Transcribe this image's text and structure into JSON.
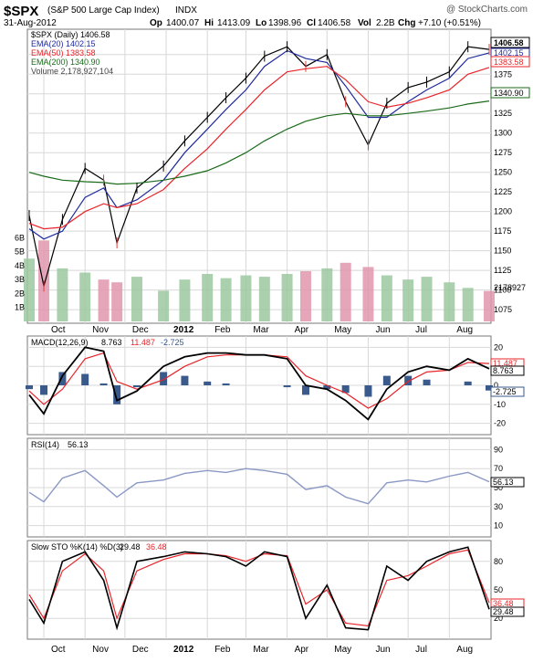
{
  "header": {
    "symbol": "$SPX",
    "name": "(S&P 500 Large Cap Index)",
    "exchange": "INDX",
    "watermark": "@ StockCharts.com",
    "date": "31-Aug-2012",
    "quote": {
      "open_label": "Op",
      "open": "1400.07",
      "high_label": "Hi",
      "high": "1413.09",
      "low_label": "Lo",
      "low": "1398.96",
      "close_label": "Cl",
      "close": "1406.58",
      "volume_label": "Vol",
      "volume": "2.2B",
      "change_label": "Chg",
      "change": "+7.10 (+0.51%)"
    }
  },
  "colors": {
    "background": "#ffffff",
    "panel_border": "#777777",
    "grid": "#d8d8d8",
    "price_bars": "#000000",
    "price_bars_down": "#e03a3a",
    "ema20": "#1f2a9e",
    "ema50": "#e8252a",
    "ema200": "#1a6b1a",
    "volume_up": "#9cc8a0",
    "volume_down": "#e296ad",
    "macd": "#000000",
    "signal": "#e8252a",
    "histogram": "#3a5a8c",
    "rsi_line": "#8a98c4",
    "sto_k": "#000000",
    "sto_d": "#e8252a"
  },
  "price_panel": {
    "title_prefix": "$SPX (Daily) 1406.58",
    "legend": [
      {
        "label": "EMA(20) 1402.15",
        "color_key": "ema20"
      },
      {
        "label": "EMA(50) 1383.58",
        "color_key": "ema50"
      },
      {
        "label": "EMA(200) 1340.90",
        "color_key": "ema200"
      },
      {
        "label": "Volume 2,178,927,104",
        "color_key": "volume_up"
      }
    ],
    "price_ticks": [
      "1400",
      "1375",
      "1350",
      "1325",
      "1300",
      "1275",
      "1250",
      "1225",
      "1200",
      "1175",
      "1150",
      "1125",
      "1100",
      "1075"
    ],
    "volume_ticks": [
      "6B",
      "5B",
      "4B",
      "3B",
      "2B",
      "1B"
    ],
    "tags": [
      {
        "label": "1406.58",
        "style": "bold"
      },
      {
        "label": "1402.15",
        "style": "normal"
      },
      {
        "label": "1383.58",
        "style": "red"
      },
      {
        "label": "1340.90",
        "style": "normal"
      },
      {
        "label": "2178927",
        "style": "normal"
      }
    ]
  },
  "macd_panel": {
    "title": "MACD(12,26,9)",
    "macd_value": "8.763",
    "signal_value": "11.487",
    "hist_value": "-2.725",
    "ticks": [
      "20",
      "10",
      "0",
      "-10",
      "-20"
    ],
    "tags": [
      "11.487",
      "8.763",
      "-2.725"
    ]
  },
  "rsi_panel": {
    "title": "RSI(14)",
    "value": "56.13",
    "ticks": [
      "90",
      "70",
      "50",
      "30",
      "10"
    ],
    "tag": "56.13"
  },
  "sto_panel": {
    "title": "Slow STO %K(14) %D(3)",
    "k_value": "29.48",
    "d_value": "36.48",
    "ticks": [
      "80",
      "50",
      "20"
    ],
    "tags": [
      "36.48",
      "29.48"
    ]
  },
  "x_axis": {
    "labels": [
      "Oct",
      "Nov",
      "Dec",
      "2012",
      "Feb",
      "Mar",
      "Apr",
      "May",
      "Jun",
      "Jul",
      "Aug"
    ]
  },
  "chart_data": {
    "type": "line",
    "title": "$SPX (S&P 500 Large Cap Index) INDX",
    "period": "Daily",
    "x": [
      "2011-09-20",
      "2011-10-01",
      "2011-10-15",
      "2011-11-01",
      "2011-11-15",
      "2011-11-25",
      "2011-12-10",
      "2011-12-30",
      "2012-01-15",
      "2012-02-01",
      "2012-02-15",
      "2012-03-01",
      "2012-03-15",
      "2012-04-01",
      "2012-04-15",
      "2012-05-01",
      "2012-05-15",
      "2012-06-01",
      "2012-06-15",
      "2012-07-01",
      "2012-07-15",
      "2012-08-01",
      "2012-08-15",
      "2012-08-31"
    ],
    "series": [
      {
        "name": "$SPX",
        "values": [
          1195,
          1105,
          1190,
          1255,
          1240,
          1160,
          1230,
          1258,
          1290,
          1320,
          1345,
          1370,
          1398,
          1410,
          1385,
          1400,
          1340,
          1285,
          1338,
          1358,
          1365,
          1378,
          1410,
          1406.58
        ]
      },
      {
        "name": "EMA(20)",
        "values": [
          1178,
          1165,
          1175,
          1218,
          1230,
          1205,
          1215,
          1240,
          1275,
          1305,
          1330,
          1355,
          1385,
          1405,
          1395,
          1390,
          1360,
          1320,
          1320,
          1340,
          1355,
          1370,
          1395,
          1402.15
        ]
      },
      {
        "name": "EMA(50)",
        "values": [
          1185,
          1178,
          1180,
          1200,
          1210,
          1205,
          1210,
          1228,
          1255,
          1280,
          1305,
          1330,
          1355,
          1378,
          1382,
          1385,
          1368,
          1340,
          1333,
          1338,
          1345,
          1355,
          1375,
          1383.58
        ]
      },
      {
        "name": "EMA(200)",
        "values": [
          1250,
          1245,
          1240,
          1238,
          1237,
          1235,
          1236,
          1240,
          1245,
          1252,
          1262,
          1275,
          1290,
          1305,
          1315,
          1322,
          1325,
          1322,
          1322,
          1325,
          1328,
          1332,
          1337,
          1340.9
        ]
      }
    ],
    "volume_b": [
      4.5,
      5.8,
      3.8,
      3.5,
      3.0,
      2.8,
      3.2,
      2.2,
      3.0,
      3.4,
      3.1,
      3.3,
      3.2,
      3.4,
      3.6,
      3.8,
      4.2,
      3.9,
      3.3,
      3.0,
      3.2,
      2.8,
      2.4,
      2.18
    ],
    "macd": [
      -5,
      -15,
      5,
      20,
      18,
      -8,
      -3,
      10,
      15,
      17,
      17,
      16,
      16,
      14,
      0,
      -2,
      -8,
      -18,
      -2,
      7,
      10,
      8,
      14,
      8.763
    ],
    "macd_signal": [
      -3,
      -10,
      -2,
      14,
      17,
      2,
      -2,
      3,
      10,
      15,
      16,
      16,
      16,
      15,
      5,
      0,
      -4,
      -12,
      -7,
      2,
      7,
      8,
      12,
      11.487
    ],
    "rsi": [
      45,
      35,
      60,
      68,
      52,
      40,
      55,
      58,
      65,
      68,
      66,
      70,
      68,
      64,
      48,
      52,
      40,
      33,
      55,
      58,
      56,
      62,
      66,
      56.13
    ],
    "sto_k": [
      40,
      15,
      80,
      90,
      60,
      10,
      80,
      85,
      90,
      88,
      85,
      75,
      90,
      85,
      20,
      55,
      10,
      8,
      75,
      60,
      80,
      90,
      95,
      29.48
    ],
    "sto_d": [
      45,
      20,
      70,
      88,
      70,
      20,
      70,
      82,
      88,
      88,
      86,
      80,
      88,
      86,
      35,
      50,
      15,
      12,
      60,
      65,
      75,
      88,
      92,
      36.48
    ],
    "ylim_price": [
      1060,
      1430
    ],
    "ylim_volume_b": [
      0,
      7
    ],
    "ylim_macd": [
      -25,
      25
    ],
    "ylim_rsi": [
      0,
      100
    ],
    "ylim_sto": [
      0,
      100
    ],
    "grid": true
  }
}
